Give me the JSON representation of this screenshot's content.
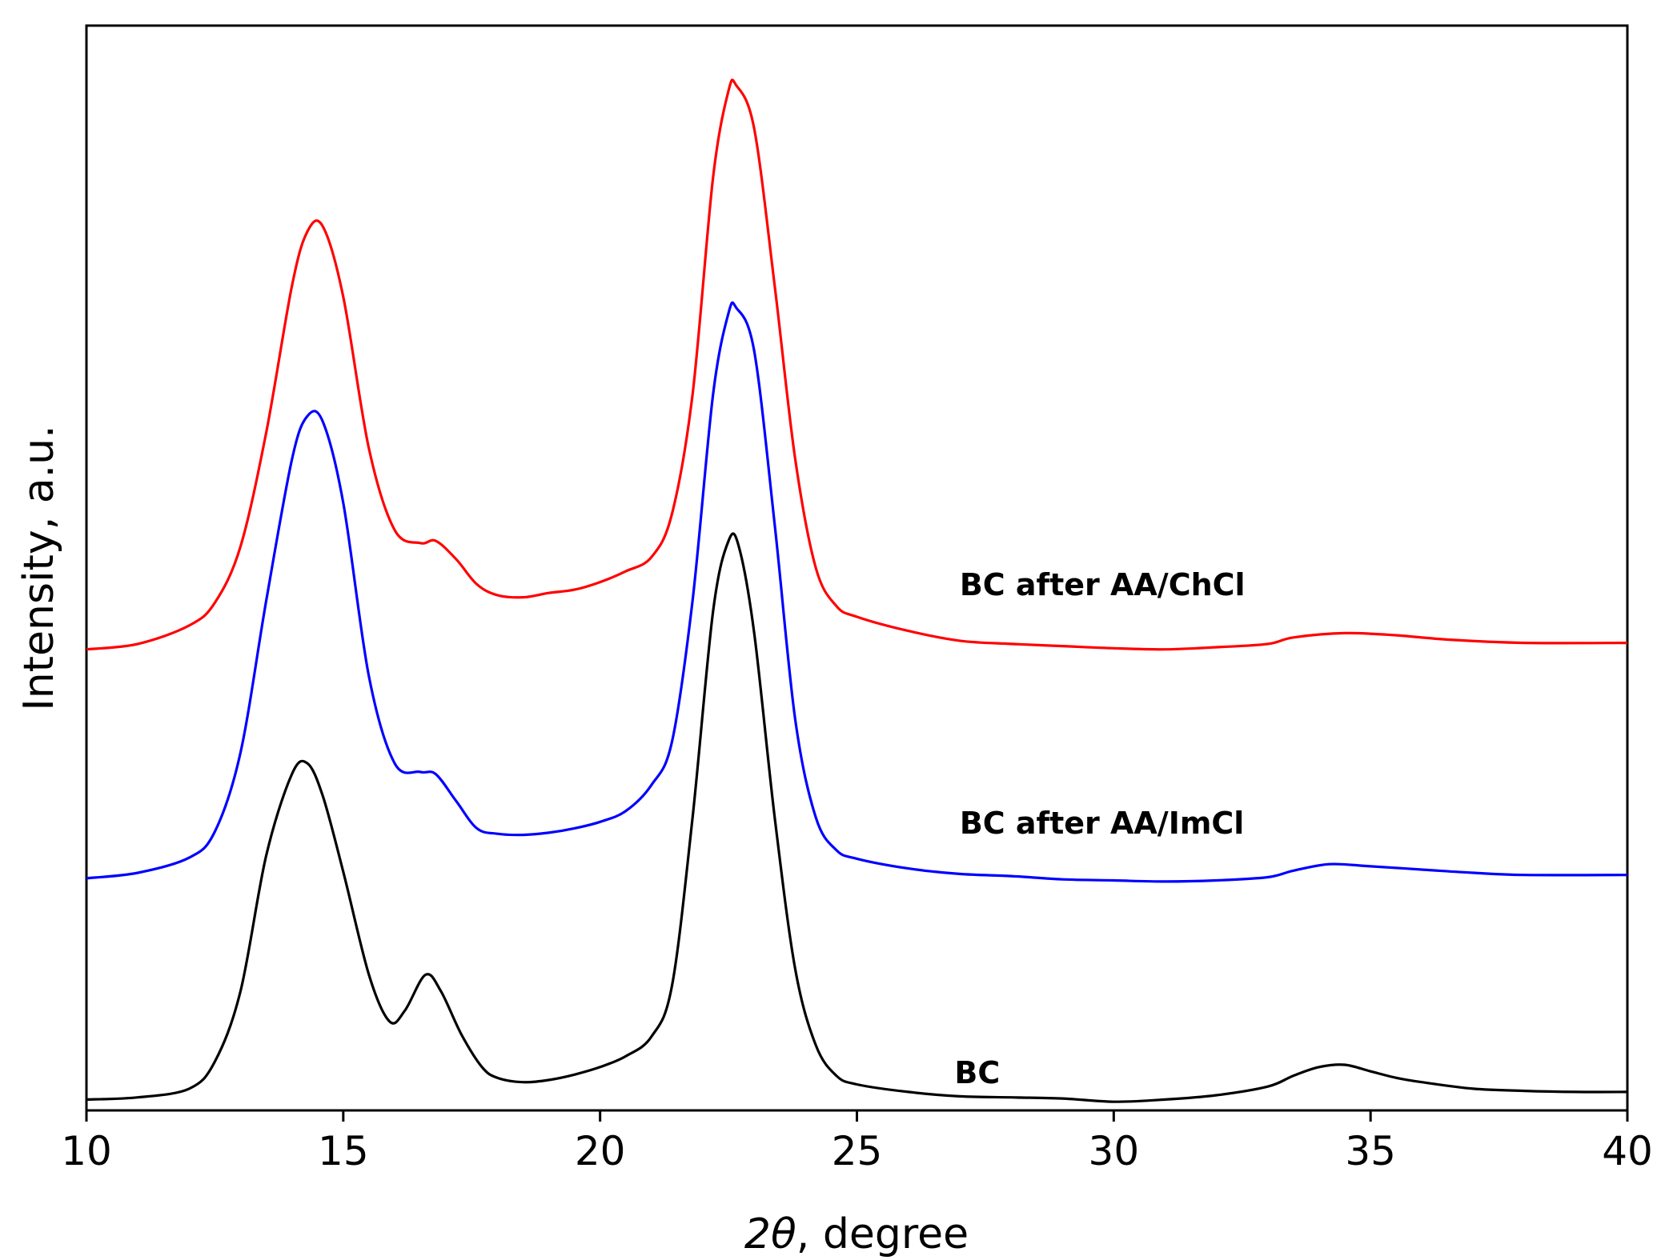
{
  "chart_data": {
    "type": "line",
    "title": "",
    "xlabel_symbol": "2θ",
    "xlabel_rest": ", degree",
    "ylabel": "Intensity, a.u.",
    "xlim": [
      10,
      40
    ],
    "ylim": [
      0,
      1.0
    ],
    "xticks": [
      "10",
      "15",
      "20",
      "25",
      "30",
      "35",
      "40"
    ],
    "yticks_shown": false,
    "grid": false,
    "legend": "none; series labelled inline on the plot",
    "series": [
      {
        "name": "BC after AA/ChCl",
        "color": "#ff0000",
        "label_at": [
          27,
          0.475
        ],
        "points": [
          [
            10,
            0.425
          ],
          [
            11,
            0.43
          ],
          [
            12,
            0.447
          ],
          [
            12.5,
            0.468
          ],
          [
            13,
            0.52
          ],
          [
            13.5,
            0.625
          ],
          [
            14,
            0.76
          ],
          [
            14.3,
            0.81
          ],
          [
            14.6,
            0.815
          ],
          [
            15,
            0.75
          ],
          [
            15.5,
            0.61
          ],
          [
            16,
            0.535
          ],
          [
            16.5,
            0.523
          ],
          [
            16.8,
            0.525
          ],
          [
            17.2,
            0.508
          ],
          [
            17.6,
            0.485
          ],
          [
            18,
            0.475
          ],
          [
            18.5,
            0.473
          ],
          [
            19,
            0.477
          ],
          [
            19.5,
            0.48
          ],
          [
            20,
            0.487
          ],
          [
            20.5,
            0.497
          ],
          [
            21,
            0.51
          ],
          [
            21.4,
            0.55
          ],
          [
            21.8,
            0.66
          ],
          [
            22.2,
            0.86
          ],
          [
            22.5,
            0.94
          ],
          [
            22.65,
            0.945
          ],
          [
            23,
            0.905
          ],
          [
            23.4,
            0.76
          ],
          [
            23.8,
            0.6
          ],
          [
            24.2,
            0.5
          ],
          [
            24.6,
            0.465
          ],
          [
            25,
            0.455
          ],
          [
            26,
            0.442
          ],
          [
            27,
            0.433
          ],
          [
            28,
            0.43
          ],
          [
            29,
            0.428
          ],
          [
            30,
            0.426
          ],
          [
            31,
            0.425
          ],
          [
            32,
            0.427
          ],
          [
            33,
            0.43
          ],
          [
            33.5,
            0.436
          ],
          [
            34.5,
            0.44
          ],
          [
            35.5,
            0.438
          ],
          [
            36.5,
            0.434
          ],
          [
            38,
            0.431
          ],
          [
            40,
            0.431
          ]
        ]
      },
      {
        "name": "BC after AA/ImCl",
        "color": "#0000ff",
        "label_at": [
          27,
          0.255
        ],
        "points": [
          [
            10,
            0.214
          ],
          [
            11,
            0.219
          ],
          [
            12,
            0.233
          ],
          [
            12.5,
            0.257
          ],
          [
            13,
            0.33
          ],
          [
            13.5,
            0.47
          ],
          [
            14,
            0.6
          ],
          [
            14.3,
            0.64
          ],
          [
            14.6,
            0.635
          ],
          [
            15,
            0.56
          ],
          [
            15.5,
            0.4
          ],
          [
            16,
            0.32
          ],
          [
            16.5,
            0.312
          ],
          [
            16.8,
            0.31
          ],
          [
            17.2,
            0.285
          ],
          [
            17.6,
            0.26
          ],
          [
            18,
            0.255
          ],
          [
            18.5,
            0.254
          ],
          [
            19,
            0.256
          ],
          [
            19.5,
            0.26
          ],
          [
            20,
            0.266
          ],
          [
            20.5,
            0.276
          ],
          [
            21,
            0.3
          ],
          [
            21.4,
            0.34
          ],
          [
            21.8,
            0.47
          ],
          [
            22.2,
            0.66
          ],
          [
            22.5,
            0.735
          ],
          [
            22.65,
            0.74
          ],
          [
            23,
            0.7
          ],
          [
            23.4,
            0.54
          ],
          [
            23.8,
            0.36
          ],
          [
            24.2,
            0.27
          ],
          [
            24.6,
            0.24
          ],
          [
            25,
            0.232
          ],
          [
            26,
            0.223
          ],
          [
            27,
            0.218
          ],
          [
            28,
            0.216
          ],
          [
            29,
            0.213
          ],
          [
            30,
            0.212
          ],
          [
            31,
            0.211
          ],
          [
            32,
            0.212
          ],
          [
            33,
            0.215
          ],
          [
            33.5,
            0.221
          ],
          [
            34.2,
            0.227
          ],
          [
            35,
            0.225
          ],
          [
            36,
            0.222
          ],
          [
            37,
            0.219
          ],
          [
            38,
            0.217
          ],
          [
            40,
            0.217
          ]
        ]
      },
      {
        "name": "BC",
        "color": "#000000",
        "label_at": [
          26.9,
          0.025
        ],
        "points": [
          [
            10,
            0.01
          ],
          [
            11,
            0.012
          ],
          [
            12,
            0.02
          ],
          [
            12.5,
            0.045
          ],
          [
            13,
            0.11
          ],
          [
            13.5,
            0.235
          ],
          [
            14,
            0.31
          ],
          [
            14.3,
            0.32
          ],
          [
            14.6,
            0.29
          ],
          [
            15,
            0.22
          ],
          [
            15.5,
            0.125
          ],
          [
            15.9,
            0.082
          ],
          [
            16.2,
            0.092
          ],
          [
            16.6,
            0.125
          ],
          [
            16.9,
            0.11
          ],
          [
            17.3,
            0.07
          ],
          [
            17.7,
            0.04
          ],
          [
            18,
            0.03
          ],
          [
            18.5,
            0.026
          ],
          [
            19,
            0.028
          ],
          [
            19.5,
            0.033
          ],
          [
            20,
            0.04
          ],
          [
            20.5,
            0.05
          ],
          [
            21,
            0.068
          ],
          [
            21.4,
            0.115
          ],
          [
            21.8,
            0.27
          ],
          [
            22.2,
            0.46
          ],
          [
            22.5,
            0.525
          ],
          [
            22.7,
            0.52
          ],
          [
            23,
            0.44
          ],
          [
            23.4,
            0.27
          ],
          [
            23.8,
            0.13
          ],
          [
            24.2,
            0.06
          ],
          [
            24.6,
            0.032
          ],
          [
            25,
            0.024
          ],
          [
            26,
            0.017
          ],
          [
            27,
            0.013
          ],
          [
            28,
            0.012
          ],
          [
            29,
            0.011
          ],
          [
            30,
            0.008
          ],
          [
            31,
            0.01
          ],
          [
            32,
            0.014
          ],
          [
            33,
            0.022
          ],
          [
            33.5,
            0.032
          ],
          [
            34,
            0.04
          ],
          [
            34.5,
            0.042
          ],
          [
            35,
            0.036
          ],
          [
            35.5,
            0.03
          ],
          [
            36,
            0.026
          ],
          [
            37,
            0.02
          ],
          [
            38,
            0.018
          ],
          [
            39,
            0.017
          ],
          [
            40,
            0.017
          ]
        ]
      }
    ]
  }
}
